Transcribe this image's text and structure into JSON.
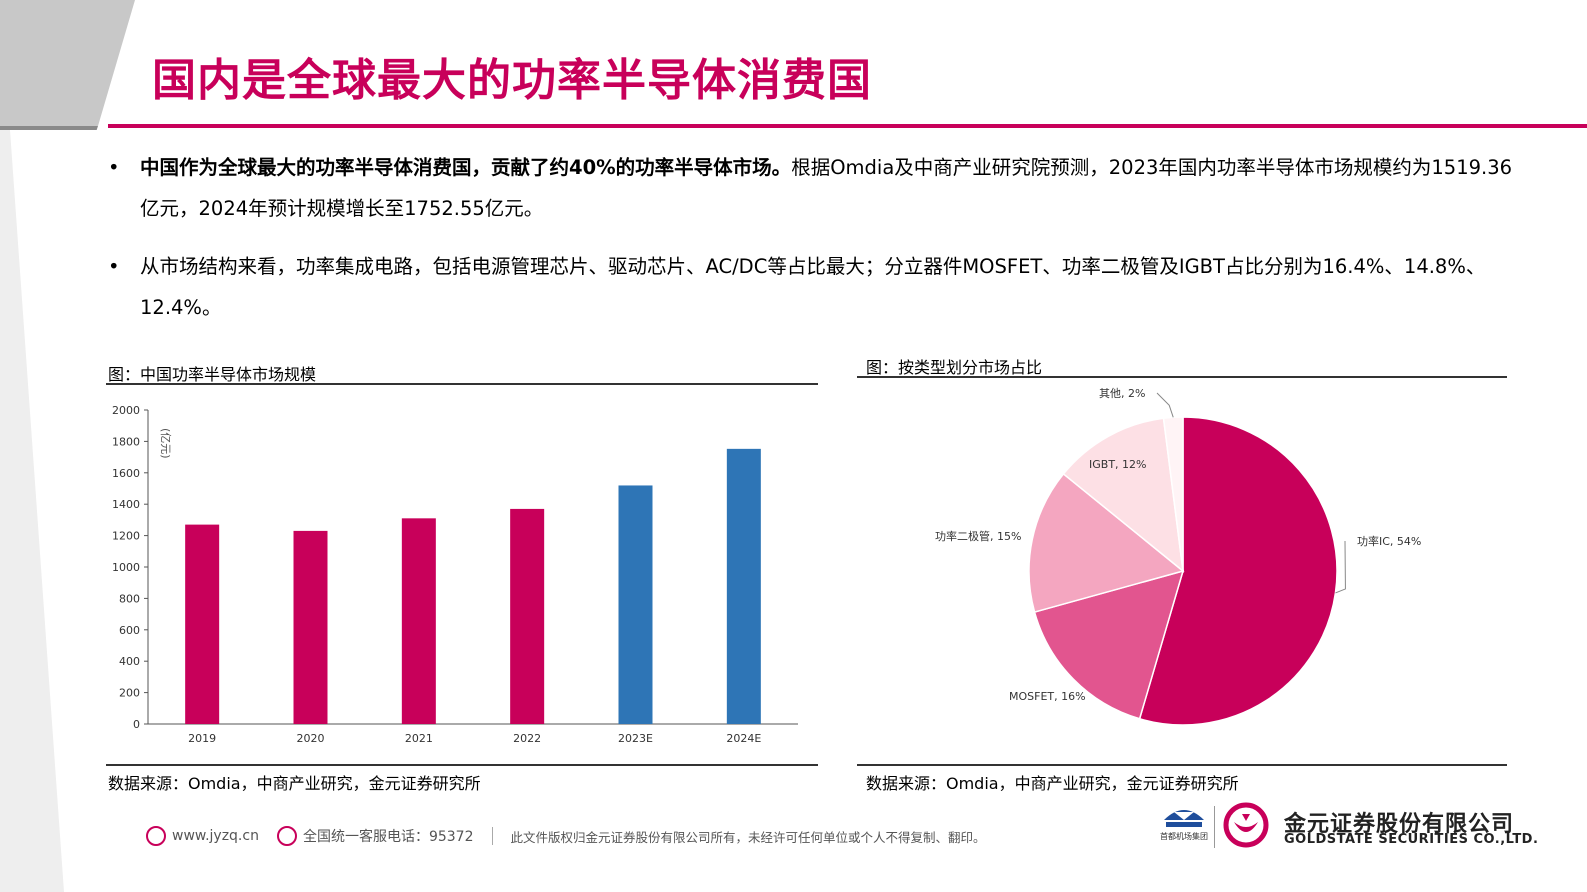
{
  "title": "国内是全球最大的功率半导体消费国",
  "bullets": [
    {
      "bold": "中国作为全球最大的功率半导体消费国，贡献了约40%的功率半导体市场。",
      "rest": "根据Omdia及中商产业研究院预测，2023年国内功率半导体市场规模约为1519.36亿元，2024年预计规模增长至1752.55亿元。"
    },
    {
      "bold": "",
      "rest": "从市场结构来看，功率集成电路，包括电源管理芯片、驱动芯片、AC/DC等占比最大；分立器件MOSFET、功率二极管及IGBT占比分别为16.4%、14.8%、12.4%。"
    }
  ],
  "bullet_symbol": "•",
  "left_chart": {
    "caption": "图：中国功率半导体市场规模",
    "source": "数据来源：Omdia，中商产业研究，金元证券研究所"
  },
  "right_chart": {
    "caption": "图：按类型划分市场占比",
    "source": "数据来源：Omdia，中商产业研究，金元证券研究所"
  },
  "chart_data": [
    {
      "type": "bar",
      "categories": [
        "2019",
        "2020",
        "2021",
        "2022",
        "2023E",
        "2024E"
      ],
      "values": [
        1270,
        1230,
        1310,
        1370,
        1519.36,
        1752.55
      ],
      "ylabel": "(亿元)",
      "ylim": [
        0,
        2000
      ],
      "yticks": [
        0,
        200,
        400,
        600,
        800,
        1000,
        1200,
        1400,
        1600,
        1800,
        2000
      ],
      "bar_colors": [
        "#c8005a",
        "#c8005a",
        "#c8005a",
        "#c8005a",
        "#2e75b6",
        "#2e75b6"
      ],
      "grid": false
    },
    {
      "type": "pie",
      "slices": [
        {
          "label": "功率IC, 54%",
          "value": 54,
          "color": "#c8005a"
        },
        {
          "label": "MOSFET, 16%",
          "value": 16,
          "color": "#e2558f"
        },
        {
          "label": "功率二极管, 15%",
          "value": 15,
          "color": "#f4a6c0"
        },
        {
          "label": "IGBT, 12%",
          "value": 12,
          "color": "#fde0e5"
        },
        {
          "label": "其他, 2%",
          "value": 2,
          "color": "#fff4f6"
        }
      ]
    }
  ],
  "footer": {
    "website": "www.jyzq.cn",
    "hotline": "全国统一客服电话：95372",
    "copyright": "此文件版权归金元证券股份有限公司所有，未经许可任何单位或个人不得复制、翻印。",
    "logo1_text": "首都机场集团",
    "brand_cn": "金元证券股份有限公司",
    "brand_en": "GOLDSTATE SECURITIES CO.,LTD."
  },
  "colors": {
    "accent": "#c8005a",
    "blue": "#2e75b6"
  }
}
